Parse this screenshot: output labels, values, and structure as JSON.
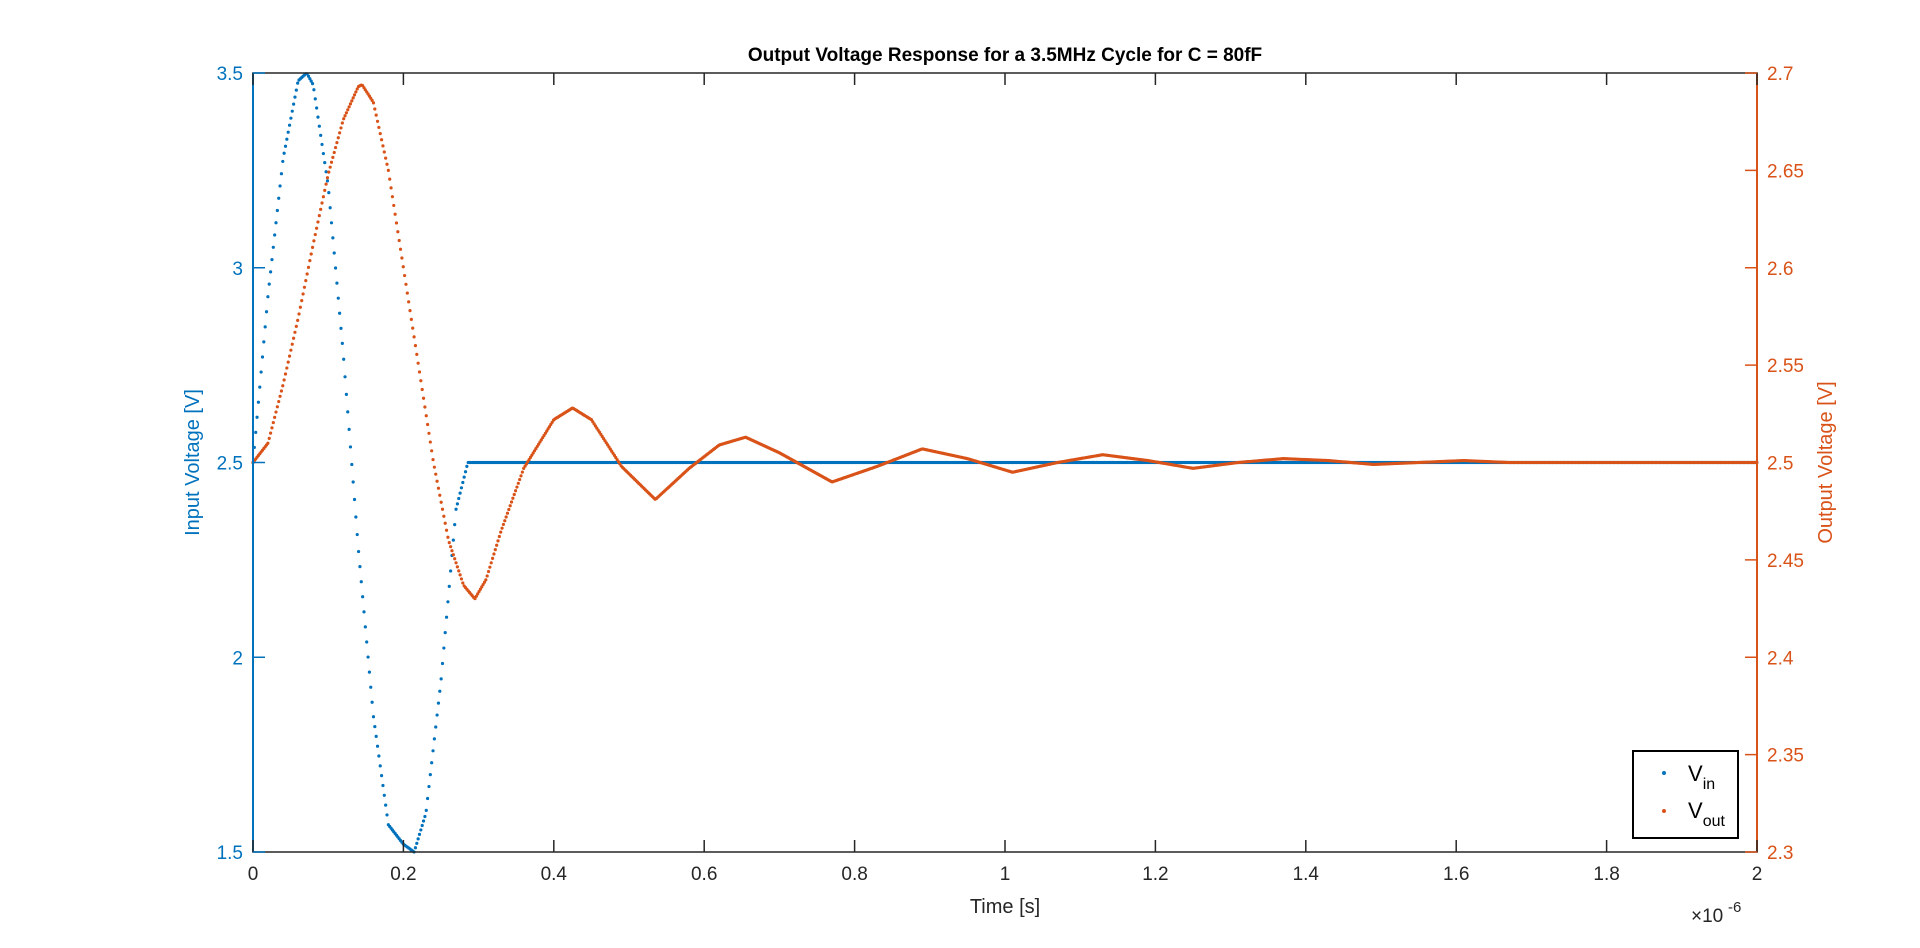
{
  "chart_data": {
    "type": "scatter",
    "title": "Output Voltage Response for a 3.5MHz Cycle for C = 80fF",
    "xlabel": "Time [s]",
    "ylabel_left": "Input Voltage [V]",
    "ylabel_right": "Output Voltage [V]",
    "x_exponent_label": "×10",
    "x_exponent_power": "-6",
    "xlim": [
      0,
      2
    ],
    "ylim_left": [
      1.5,
      3.5
    ],
    "ylim_right": [
      2.3,
      2.7
    ],
    "x_ticks": [
      "0",
      "0.2",
      "0.4",
      "0.6",
      "0.8",
      "1",
      "1.2",
      "1.4",
      "1.6",
      "1.8",
      "2"
    ],
    "y_left_ticks": [
      "1.5",
      "2",
      "2.5",
      "3",
      "3.5"
    ],
    "y_right_ticks": [
      "2.3",
      "2.35",
      "2.4",
      "2.45",
      "2.5",
      "2.55",
      "2.6",
      "2.65",
      "2.7"
    ],
    "grid": false,
    "legend_position": "bottom-right",
    "colors": {
      "vin": "#0072BD",
      "vout": "#D95319",
      "axis": "#262626"
    },
    "series": [
      {
        "name": "V",
        "subscript": "in",
        "axis": "left",
        "x": [
          0,
          0.02,
          0.04,
          0.06,
          0.0714,
          0.08,
          0.1,
          0.12,
          0.14,
          0.16,
          0.18,
          0.2,
          0.2143,
          0.23,
          0.25,
          0.27,
          0.2857,
          0.4,
          0.6,
          0.8,
          1.0,
          1.2,
          1.4,
          1.6,
          1.8,
          2.0
        ],
        "y": [
          2.5,
          2.93,
          3.28,
          3.48,
          3.5,
          3.47,
          3.21,
          2.78,
          2.28,
          1.85,
          1.57,
          1.52,
          1.5,
          1.6,
          1.94,
          2.38,
          2.5,
          2.5,
          2.5,
          2.5,
          2.5,
          2.5,
          2.5,
          2.5,
          2.5,
          2.5
        ]
      },
      {
        "name": "V",
        "subscript": "out",
        "axis": "right",
        "x": [
          0,
          0.02,
          0.04,
          0.06,
          0.08,
          0.1,
          0.12,
          0.14,
          0.145,
          0.16,
          0.18,
          0.2,
          0.22,
          0.24,
          0.26,
          0.28,
          0.295,
          0.31,
          0.33,
          0.36,
          0.4,
          0.425,
          0.45,
          0.49,
          0.535,
          0.58,
          0.62,
          0.655,
          0.7,
          0.77,
          0.83,
          0.89,
          0.95,
          1.01,
          1.07,
          1.13,
          1.19,
          1.25,
          1.31,
          1.37,
          1.43,
          1.49,
          1.55,
          1.61,
          1.67,
          1.73,
          1.79,
          1.85,
          1.91,
          2.0
        ],
        "y": [
          2.5,
          2.51,
          2.54,
          2.574,
          2.612,
          2.648,
          2.676,
          2.693,
          2.694,
          2.685,
          2.65,
          2.6,
          2.55,
          2.5,
          2.46,
          2.437,
          2.43,
          2.44,
          2.465,
          2.497,
          2.522,
          2.528,
          2.522,
          2.498,
          2.481,
          2.497,
          2.509,
          2.513,
          2.505,
          2.49,
          2.498,
          2.507,
          2.502,
          2.495,
          2.5,
          2.504,
          2.501,
          2.497,
          2.5,
          2.502,
          2.501,
          2.499,
          2.5,
          2.501,
          2.5,
          2.5,
          2.5,
          2.5,
          2.5,
          2.5
        ]
      }
    ]
  }
}
